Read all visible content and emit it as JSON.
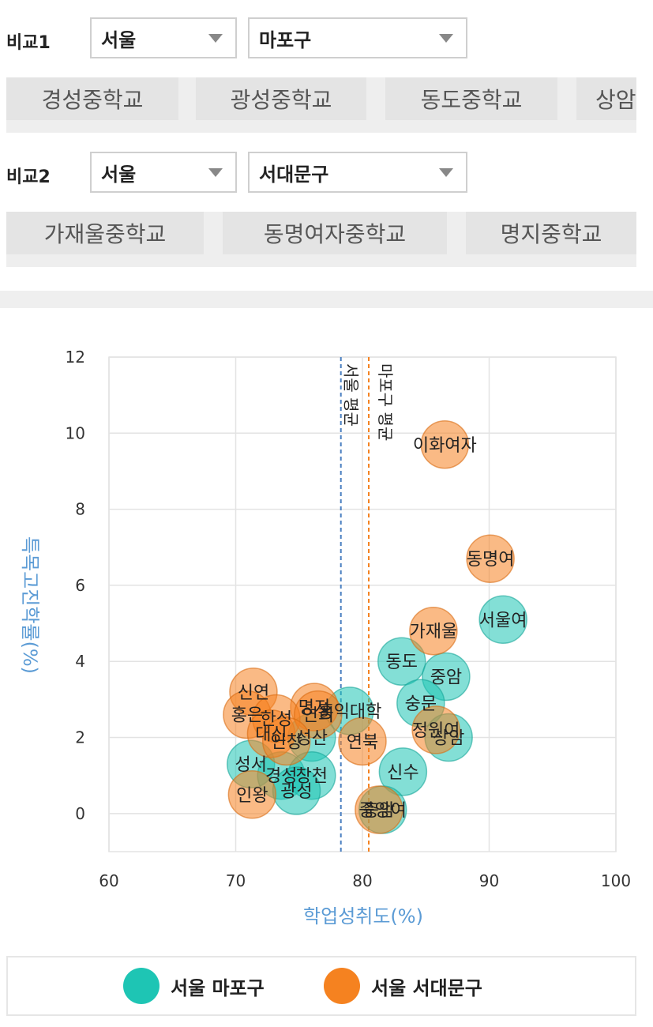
{
  "compare1": {
    "label": "비교1",
    "region_select": "서울",
    "district_select": "마포구",
    "schools": [
      "경성중학교",
      "광성중학교",
      "동도중학교",
      "상암중학교"
    ]
  },
  "compare2": {
    "label": "비교2",
    "region_select": "서울",
    "district_select": "서대문구",
    "schools": [
      "가재울중학교",
      "동명여자중학교",
      "명지중학교"
    ]
  },
  "colors": {
    "mapo": "#1ec5b4",
    "seodaemun": "#f58220",
    "axis_title": "#5b9bd5"
  },
  "chart_data": {
    "type": "scatter",
    "xlabel": "학업성취도(%)",
    "ylabel": "특목고진학률(%)",
    "xlim": [
      60,
      100
    ],
    "ylim": [
      -1,
      12
    ],
    "xticks": [
      60,
      70,
      80,
      90,
      100
    ],
    "yticks": [
      0,
      2,
      4,
      6,
      8,
      10,
      12
    ],
    "grid": true,
    "legend_position": "bottom",
    "reference_lines": [
      {
        "x": 78.3,
        "label": "서울 평균",
        "series": "서울 마포구"
      },
      {
        "x": 80.5,
        "label": "마포구 평균",
        "series": "서울 서대문구"
      }
    ],
    "series": [
      {
        "name": "서울 마포구",
        "points": [
          {
            "label": "서울여",
            "x": 91.1,
            "y": 5.1
          },
          {
            "label": "동도",
            "x": 83.1,
            "y": 4.0
          },
          {
            "label": "중암",
            "x": 86.6,
            "y": 3.6
          },
          {
            "label": "숭문",
            "x": 84.6,
            "y": 2.9
          },
          {
            "label": "홍익대학",
            "x": 79.0,
            "y": 2.7
          },
          {
            "label": "상암",
            "x": 86.8,
            "y": 2.0
          },
          {
            "label": "성산",
            "x": 76.0,
            "y": 2.0
          },
          {
            "label": "신수",
            "x": 83.2,
            "y": 1.1
          },
          {
            "label": "성서",
            "x": 71.2,
            "y": 1.3
          },
          {
            "label": "경성",
            "x": 73.6,
            "y": 1.0
          },
          {
            "label": "창천",
            "x": 76.0,
            "y": 1.0
          },
          {
            "label": "광성",
            "x": 74.8,
            "y": 0.6
          },
          {
            "label": "중앙여",
            "x": 81.6,
            "y": 0.1
          }
        ]
      },
      {
        "name": "서울 서대문구",
        "points": [
          {
            "label": "이화여자",
            "x": 86.5,
            "y": 9.7
          },
          {
            "label": "동명여",
            "x": 90.1,
            "y": 6.7
          },
          {
            "label": "가재울",
            "x": 85.6,
            "y": 4.8
          },
          {
            "label": "신연",
            "x": 71.4,
            "y": 3.2
          },
          {
            "label": "명지",
            "x": 76.2,
            "y": 2.8
          },
          {
            "label": "홍은",
            "x": 70.9,
            "y": 2.6
          },
          {
            "label": "한성",
            "x": 73.2,
            "y": 2.5
          },
          {
            "label": "연희",
            "x": 76.5,
            "y": 2.6
          },
          {
            "label": "대신",
            "x": 72.8,
            "y": 2.1
          },
          {
            "label": "정원여",
            "x": 85.8,
            "y": 2.2
          },
          {
            "label": "인창",
            "x": 74.0,
            "y": 1.9
          },
          {
            "label": "연북",
            "x": 80.0,
            "y": 1.9
          },
          {
            "label": "인왕",
            "x": 71.3,
            "y": 0.5
          },
          {
            "label": "충암",
            "x": 81.3,
            "y": 0.1
          }
        ]
      }
    ]
  },
  "legend": {
    "items": [
      {
        "label": "서울 마포구"
      },
      {
        "label": "서울 서대문구"
      }
    ]
  }
}
